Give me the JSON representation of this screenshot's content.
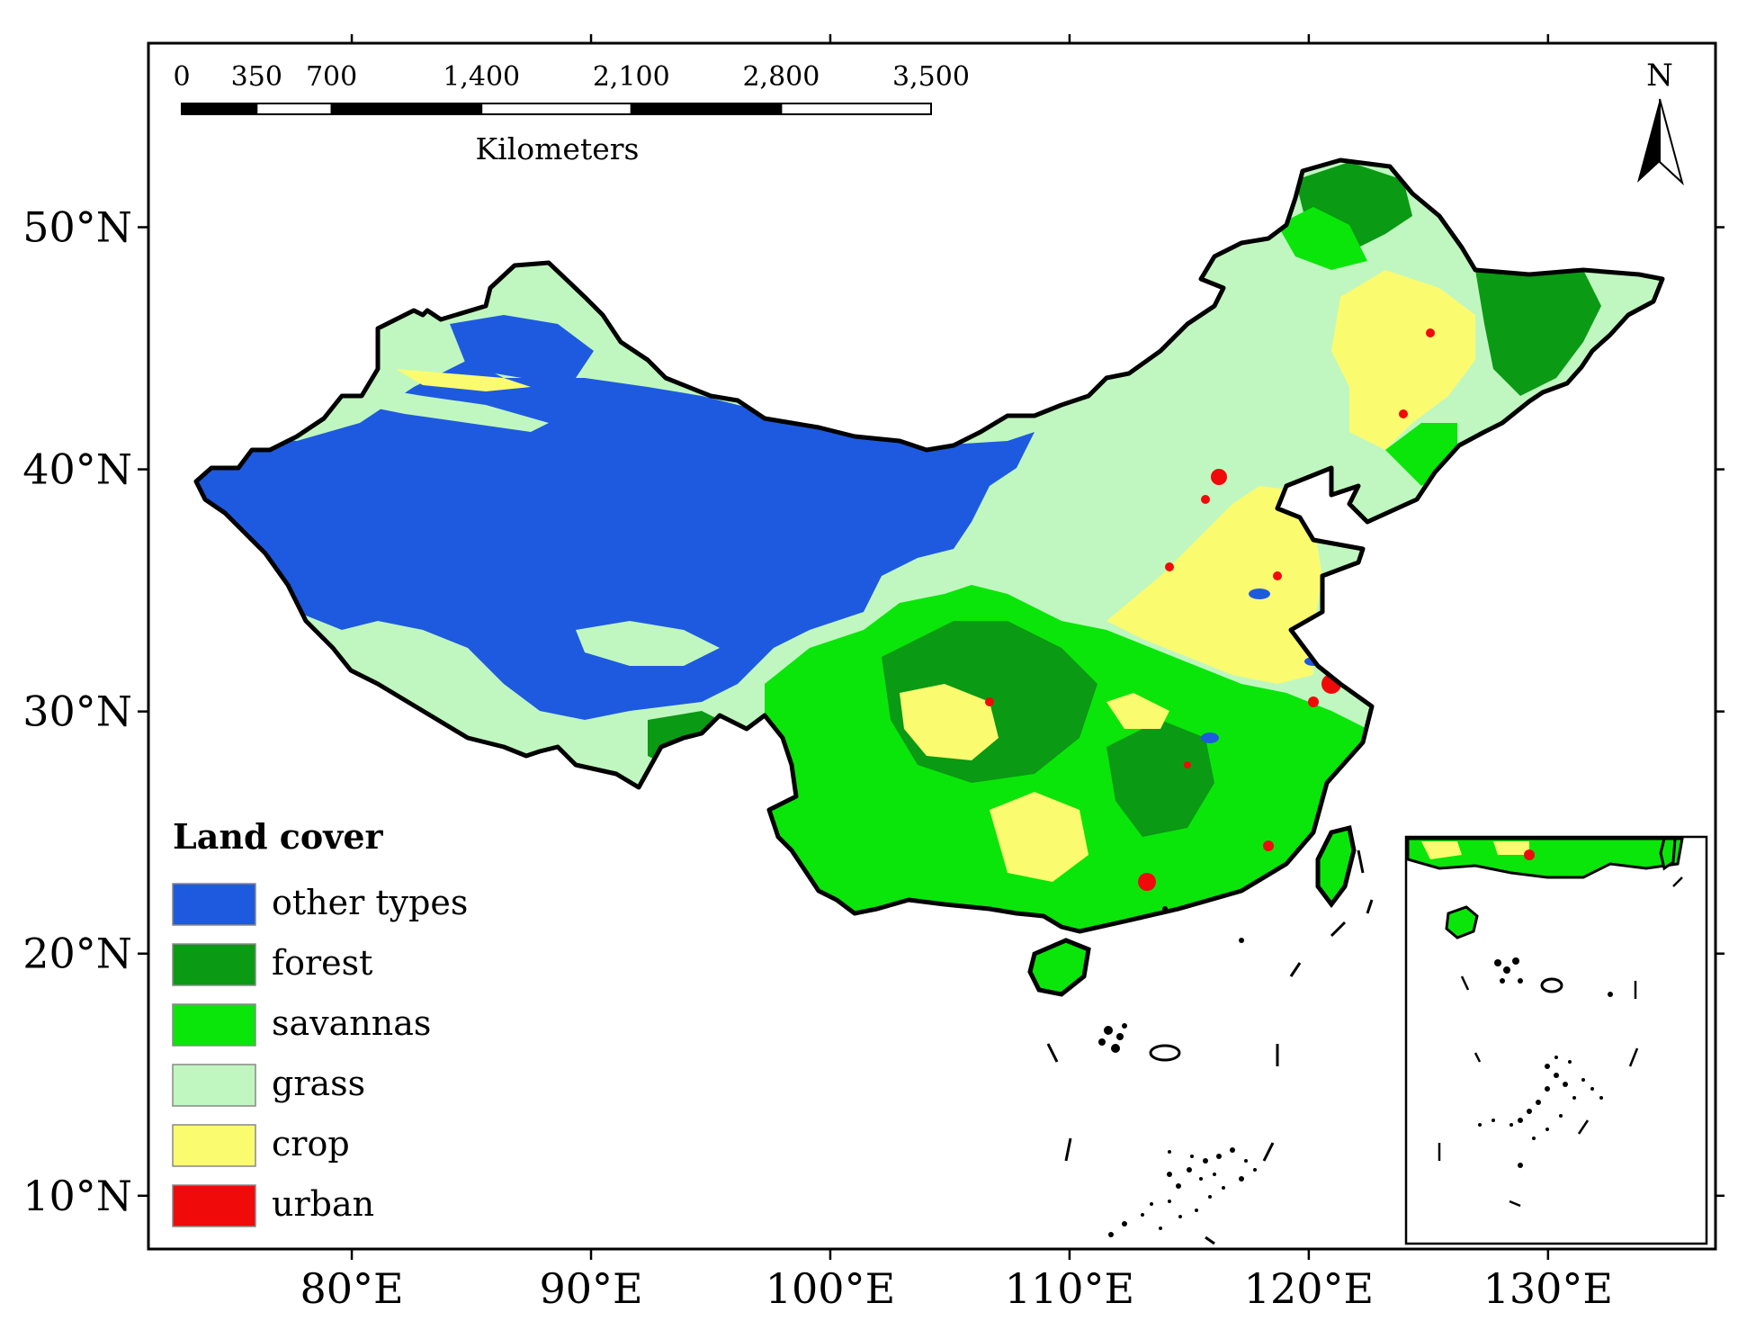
{
  "scale_bar": {
    "labels": [
      "0",
      "350",
      "700",
      "1,400",
      "2,100",
      "2,800",
      "3,500"
    ],
    "values": [
      0,
      350,
      700,
      1400,
      2100,
      2800,
      3500
    ],
    "unit": "Kilometers"
  },
  "north_arrow": {
    "label": "N",
    "icon": "north-arrow-icon"
  },
  "axes": {
    "lat_ticks": [
      {
        "value": 50,
        "label": "50°N"
      },
      {
        "value": 40,
        "label": "40°N"
      },
      {
        "value": 30,
        "label": "30°N"
      },
      {
        "value": 20,
        "label": "20°N"
      },
      {
        "value": 10,
        "label": "10°N"
      }
    ],
    "lon_ticks": [
      {
        "value": 80,
        "label": "80°E"
      },
      {
        "value": 90,
        "label": "90°E"
      },
      {
        "value": 100,
        "label": "100°E"
      },
      {
        "value": 110,
        "label": "110°E"
      },
      {
        "value": 120,
        "label": "120°E"
      },
      {
        "value": 130,
        "label": "130°E"
      }
    ],
    "lat_range": [
      7.8,
      57.6
    ],
    "lon_range": [
      71.5,
      137.0
    ]
  },
  "legend": {
    "title": "Land cover",
    "placement": "bottom-left",
    "items": [
      {
        "label": "other types",
        "color": "#1e5ae0"
      },
      {
        "label": "forest",
        "color": "#0a9a14"
      },
      {
        "label": "savannas",
        "color": "#0ae60a"
      },
      {
        "label": "grass",
        "color": "#c0f7c0"
      },
      {
        "label": "crop",
        "color": "#fbfb70"
      },
      {
        "label": "urban",
        "color": "#f00a0a"
      }
    ]
  },
  "inset": {
    "placement": "bottom-right"
  }
}
